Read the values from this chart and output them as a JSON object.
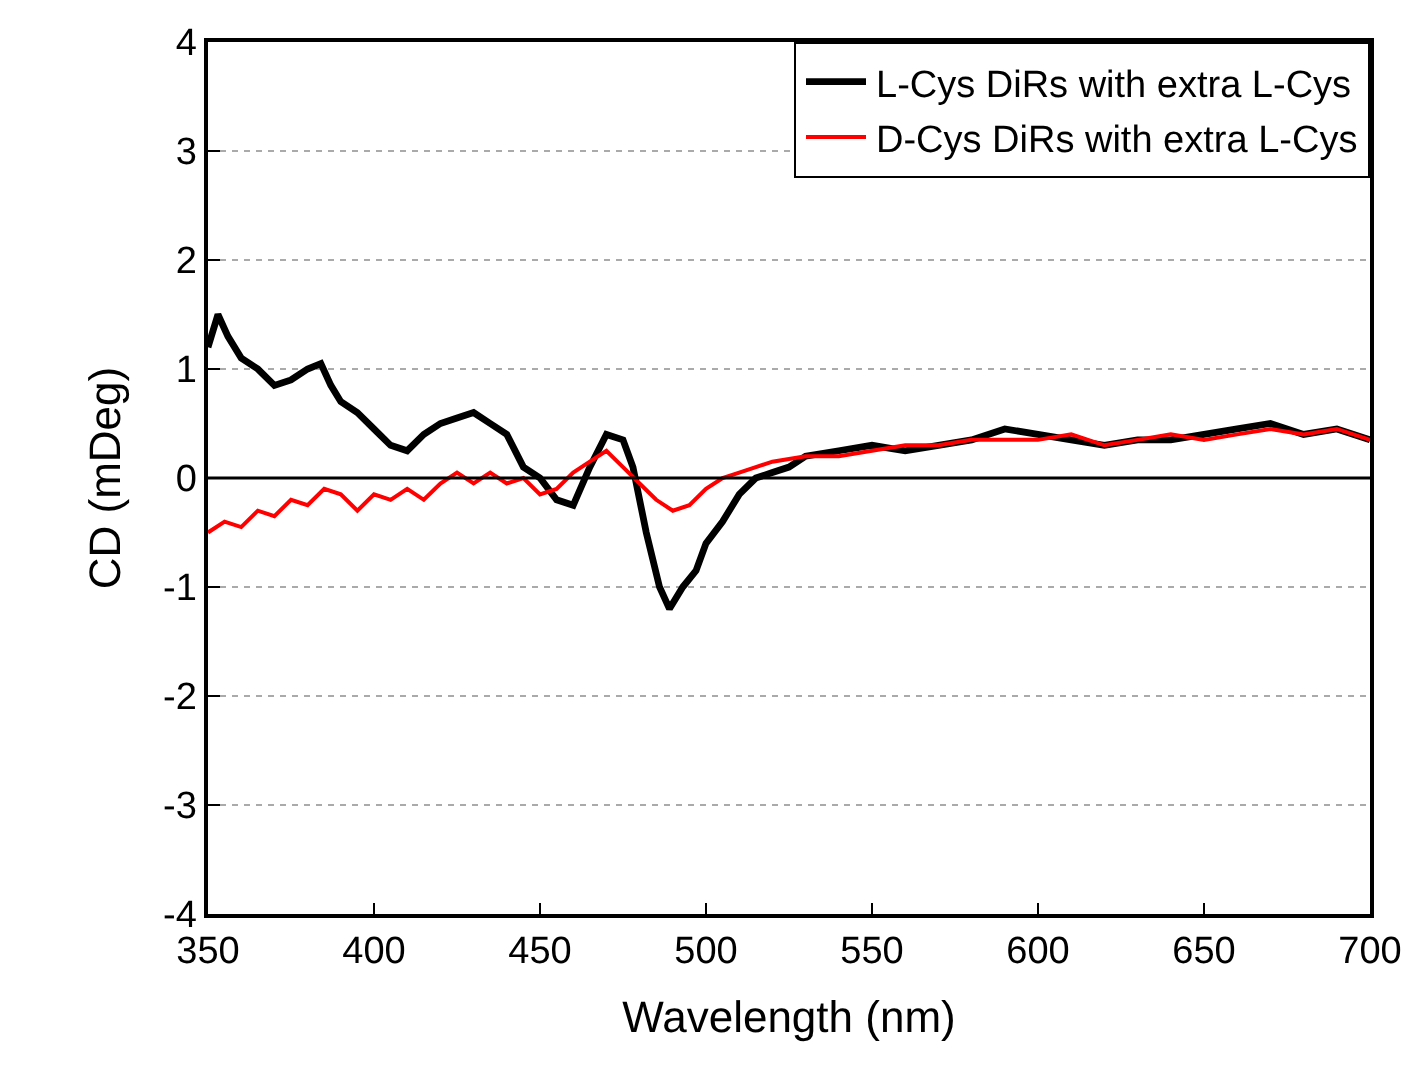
{
  "chart_data": {
    "type": "line",
    "xlabel": "Wavelength (nm)",
    "ylabel": "CD (mDeg)",
    "xlim": [
      350,
      700
    ],
    "xticks": [
      350,
      400,
      450,
      500,
      550,
      600,
      650,
      700
    ],
    "ylim": [
      -4,
      4
    ],
    "yticks": [
      -4,
      -3,
      -2,
      -1,
      0,
      1,
      2,
      3,
      4
    ],
    "grid": "y",
    "legend": "top right",
    "line_style": "solid",
    "marker": "none",
    "ref_lines": [
      {
        "axis": "y",
        "value": 0,
        "color": "#000000"
      }
    ],
    "series": [
      {
        "name": "L-Cys DiRs with extra L-Cys",
        "color": "#000000",
        "x": [
          350,
          353,
          356,
          360,
          365,
          370,
          375,
          380,
          384,
          387,
          390,
          395,
          400,
          405,
          410,
          415,
          420,
          425,
          430,
          435,
          440,
          445,
          450,
          455,
          460,
          465,
          470,
          475,
          478,
          482,
          486,
          489,
          493,
          497,
          500,
          505,
          510,
          515,
          520,
          525,
          530,
          540,
          550,
          560,
          570,
          580,
          590,
          600,
          610,
          620,
          630,
          640,
          650,
          660,
          670,
          680,
          690,
          700
        ],
        "values": [
          1.2,
          1.5,
          1.3,
          1.1,
          1.0,
          0.85,
          0.9,
          1.0,
          1.05,
          0.85,
          0.7,
          0.6,
          0.45,
          0.3,
          0.25,
          0.4,
          0.5,
          0.55,
          0.6,
          0.5,
          0.4,
          0.1,
          0.0,
          -0.2,
          -0.25,
          0.1,
          0.4,
          0.35,
          0.1,
          -0.5,
          -1.0,
          -1.2,
          -1.0,
          -0.85,
          -0.6,
          -0.4,
          -0.15,
          0.0,
          0.05,
          0.1,
          0.2,
          0.25,
          0.3,
          0.25,
          0.3,
          0.35,
          0.45,
          0.4,
          0.35,
          0.3,
          0.35,
          0.35,
          0.4,
          0.45,
          0.5,
          0.4,
          0.45,
          0.35
        ]
      },
      {
        "name": "D-Cys DiRs with extra L-Cys",
        "color": "#ff0000",
        "x": [
          350,
          355,
          360,
          365,
          370,
          375,
          380,
          385,
          390,
          395,
          400,
          405,
          410,
          415,
          420,
          425,
          430,
          435,
          440,
          445,
          450,
          455,
          460,
          465,
          470,
          475,
          480,
          485,
          490,
          495,
          500,
          505,
          510,
          515,
          520,
          530,
          540,
          550,
          560,
          570,
          580,
          590,
          600,
          610,
          620,
          630,
          640,
          650,
          660,
          670,
          680,
          690,
          700
        ],
        "values": [
          -0.5,
          -0.4,
          -0.45,
          -0.3,
          -0.35,
          -0.2,
          -0.25,
          -0.1,
          -0.15,
          -0.3,
          -0.15,
          -0.2,
          -0.1,
          -0.2,
          -0.05,
          0.05,
          -0.05,
          0.05,
          -0.05,
          0.0,
          -0.15,
          -0.1,
          0.05,
          0.15,
          0.25,
          0.1,
          -0.05,
          -0.2,
          -0.3,
          -0.25,
          -0.1,
          0.0,
          0.05,
          0.1,
          0.15,
          0.2,
          0.2,
          0.25,
          0.3,
          0.3,
          0.35,
          0.35,
          0.35,
          0.4,
          0.3,
          0.35,
          0.4,
          0.35,
          0.4,
          0.45,
          0.4,
          0.45,
          0.35
        ]
      }
    ]
  }
}
